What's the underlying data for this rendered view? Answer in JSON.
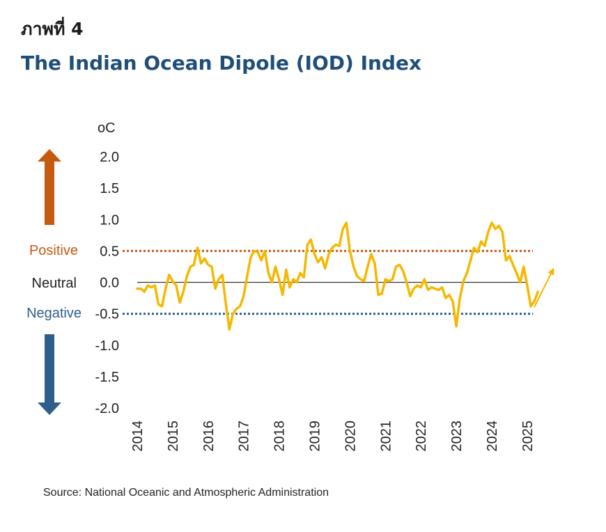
{
  "figure_label": "ภาพที่ 4",
  "source": "Source: National Oceanic and Atmospheric Administration",
  "colors": {
    "title": "#1f4e79",
    "positive": "#c55a11",
    "negative": "#2e5f8a",
    "line": "#f5b800",
    "zero": "#333333"
  },
  "chart_data": {
    "type": "line",
    "title": "The Indian Ocean Dipole (IOD) Index",
    "unit": "oC",
    "ylim": [
      -2.0,
      2.0
    ],
    "yticks": [
      "2.0",
      "1.5",
      "1.0",
      "0.5",
      "0.0",
      "-0.5",
      "-1.0",
      "-1.5",
      "-2.0"
    ],
    "xticks": [
      "2014",
      "2015",
      "2016",
      "2017",
      "2018",
      "2019",
      "2020",
      "2021",
      "2022",
      "2023",
      "2024",
      "2025"
    ],
    "xlim": [
      2014,
      2025.4
    ],
    "thresholds": [
      {
        "name": "positive",
        "label": "Positive",
        "value": 0.5
      },
      {
        "name": "negative",
        "label": "Negative",
        "value": -0.5
      }
    ],
    "neutral_label": "Neutral",
    "series": [
      {
        "name": "IOD Index",
        "x": [
          2014.0,
          2014.1,
          2014.2,
          2014.3,
          2014.4,
          2014.5,
          2014.6,
          2014.7,
          2014.8,
          2014.9,
          2015.0,
          2015.1,
          2015.2,
          2015.3,
          2015.4,
          2015.5,
          2015.6,
          2015.7,
          2015.8,
          2015.9,
          2016.0,
          2016.1,
          2016.2,
          2016.3,
          2016.4,
          2016.5,
          2016.6,
          2016.7,
          2016.8,
          2016.9,
          2017.0,
          2017.1,
          2017.2,
          2017.3,
          2017.4,
          2017.5,
          2017.6,
          2017.7,
          2017.8,
          2017.9,
          2018.0,
          2018.1,
          2018.2,
          2018.3,
          2018.4,
          2018.5,
          2018.6,
          2018.7,
          2018.8,
          2018.9,
          2019.0,
          2019.1,
          2019.2,
          2019.3,
          2019.4,
          2019.5,
          2019.6,
          2019.7,
          2019.8,
          2019.9,
          2020.0,
          2020.1,
          2020.2,
          2020.3,
          2020.4,
          2020.5,
          2020.6,
          2020.7,
          2020.8,
          2020.9,
          2021.0,
          2021.1,
          2021.2,
          2021.3,
          2021.4,
          2021.5,
          2021.6,
          2021.7,
          2021.8,
          2021.9,
          2022.0,
          2022.1,
          2022.2,
          2022.3,
          2022.4,
          2022.5,
          2022.6,
          2022.7,
          2022.8,
          2022.9,
          2023.0,
          2023.1,
          2023.2,
          2023.3,
          2023.4,
          2023.5,
          2023.6,
          2023.7,
          2023.8,
          2023.9,
          2024.0,
          2024.1,
          2024.2,
          2024.3,
          2024.4,
          2024.5,
          2024.6,
          2024.7,
          2024.8,
          2024.9,
          2025.0,
          2025.1,
          2025.2,
          2025.3
        ],
        "values": [
          -0.1,
          -0.1,
          -0.15,
          -0.05,
          -0.08,
          -0.05,
          -0.35,
          -0.38,
          -0.1,
          0.12,
          0.02,
          -0.05,
          -0.32,
          -0.15,
          0.1,
          0.25,
          0.28,
          0.55,
          0.3,
          0.38,
          0.28,
          0.25,
          -0.1,
          0.05,
          0.12,
          -0.35,
          -0.75,
          -0.5,
          -0.42,
          -0.38,
          -0.22,
          0.1,
          0.4,
          0.5,
          0.48,
          0.35,
          0.5,
          0.15,
          0.0,
          0.25,
          0.05,
          -0.2,
          0.2,
          -0.08,
          0.05,
          0.0,
          0.15,
          0.08,
          0.6,
          0.68,
          0.45,
          0.32,
          0.4,
          0.22,
          0.45,
          0.55,
          0.6,
          0.58,
          0.85,
          0.95,
          0.5,
          0.25,
          0.1,
          0.05,
          0.02,
          0.25,
          0.45,
          0.3,
          -0.2,
          -0.18,
          0.05,
          0.02,
          0.05,
          0.25,
          0.28,
          0.18,
          0.0,
          -0.22,
          -0.1,
          -0.05,
          -0.08,
          0.05,
          -0.12,
          -0.08,
          -0.1,
          -0.12,
          -0.08,
          -0.25,
          -0.2,
          -0.3,
          -0.7,
          -0.25,
          0.02,
          0.15,
          0.35,
          0.55,
          0.48,
          0.65,
          0.58,
          0.8,
          0.95,
          0.85,
          0.9,
          0.8,
          0.35,
          0.42,
          0.28,
          0.15,
          0.0,
          0.25,
          -0.05,
          -0.38,
          -0.3,
          -0.15
        ]
      }
    ]
  }
}
